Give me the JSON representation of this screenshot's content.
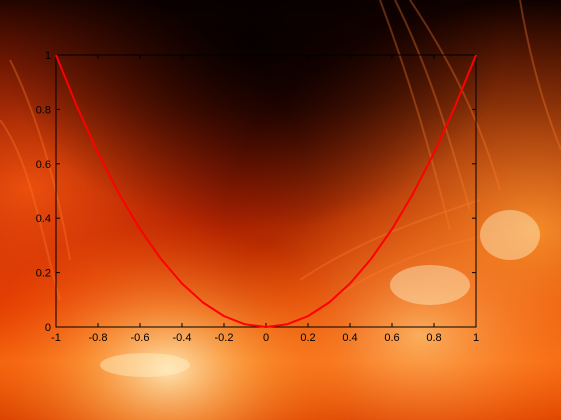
{
  "chart_data": {
    "type": "line",
    "title": "",
    "xlabel": "",
    "ylabel": "",
    "xlim": [
      -1,
      1
    ],
    "ylim": [
      0,
      1
    ],
    "x_ticks": [
      "-1",
      "-0.8",
      "-0.6",
      "-0.4",
      "-0.2",
      "0",
      "0.2",
      "0.4",
      "0.6",
      "0.8",
      "1"
    ],
    "y_ticks": [
      "0",
      "0.2",
      "0.4",
      "0.6",
      "0.8",
      "1"
    ],
    "grid": false,
    "series": [
      {
        "color": "#ff0000",
        "x": [
          -1.0,
          -0.9,
          -0.8,
          -0.7,
          -0.6,
          -0.5,
          -0.4,
          -0.3,
          -0.2,
          -0.1,
          0.0,
          0.1,
          0.2,
          0.3,
          0.4,
          0.5,
          0.6,
          0.7,
          0.8,
          0.9,
          1.0
        ],
        "y": [
          1.0,
          0.81,
          0.64,
          0.49,
          0.36,
          0.25,
          0.16,
          0.09,
          0.04,
          0.01,
          0.0,
          0.01,
          0.04,
          0.09,
          0.16,
          0.25,
          0.36,
          0.49,
          0.64,
          0.81,
          1.0
        ]
      }
    ],
    "background": "solar-corona-photo"
  }
}
